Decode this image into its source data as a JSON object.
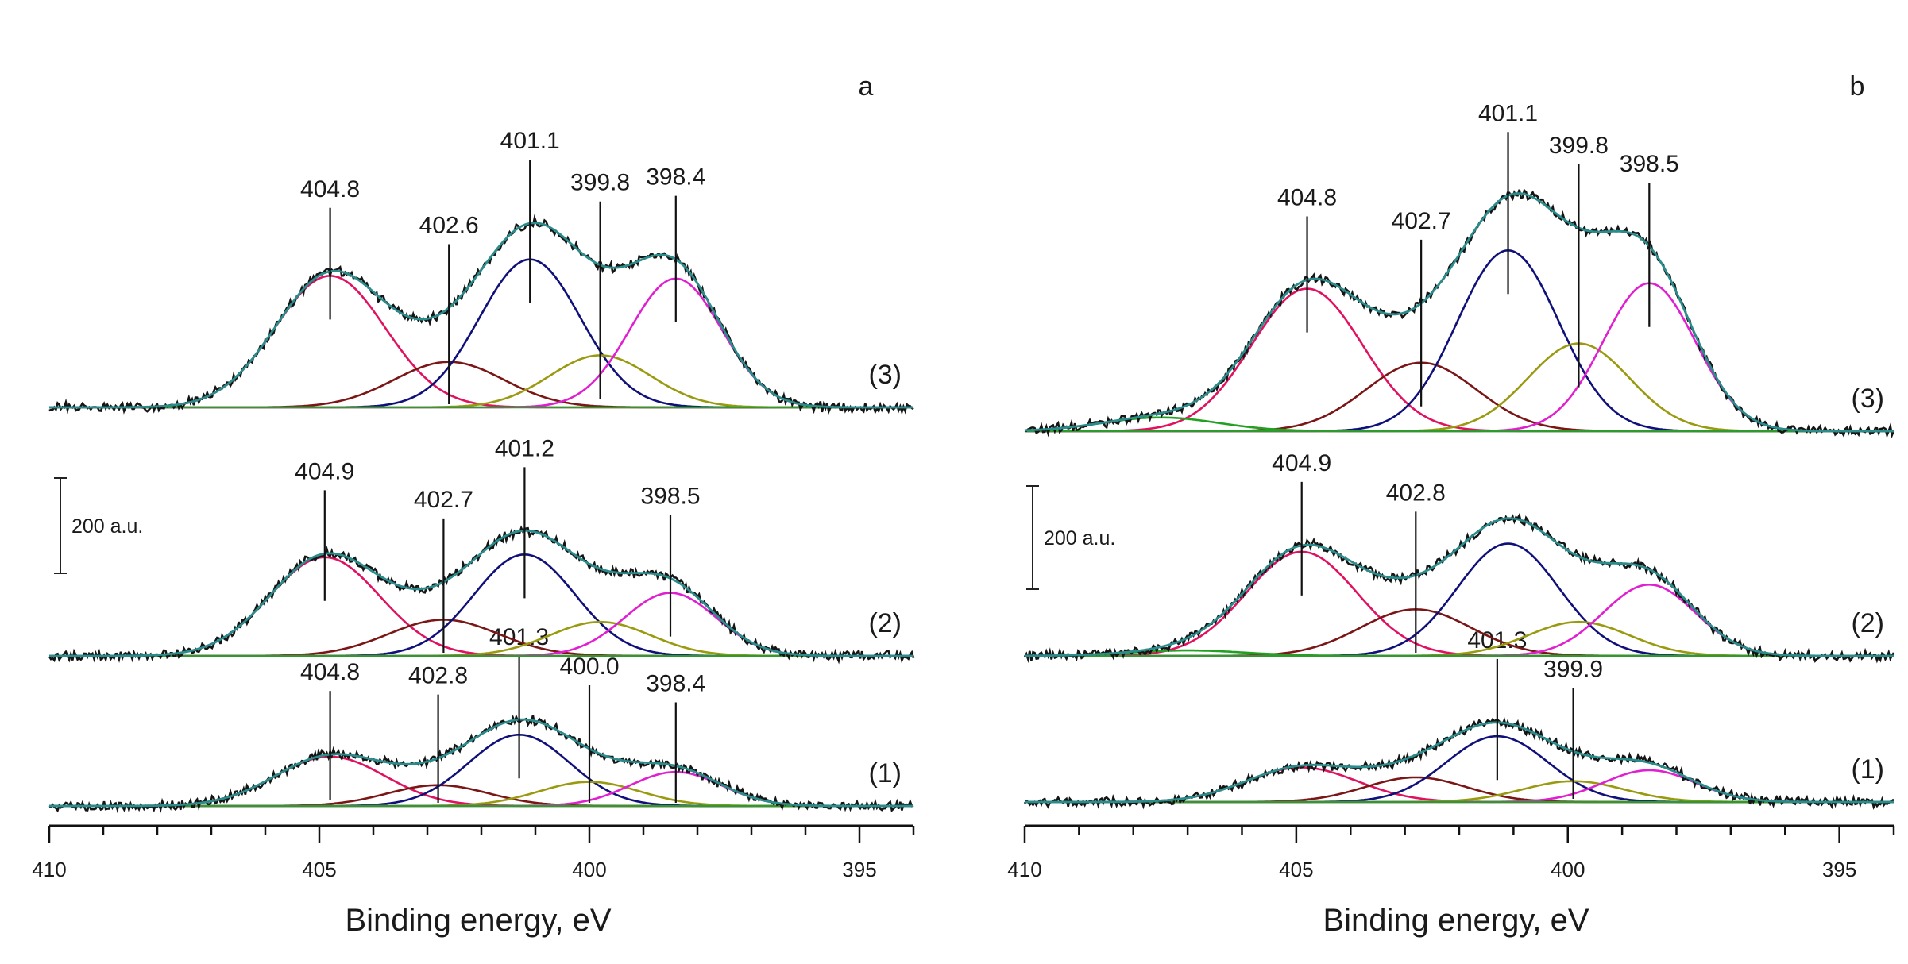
{
  "chart_data": [
    {
      "panel_label": "a",
      "type": "line",
      "xlabel": "Binding energy, eV",
      "ylabel": "",
      "xlim": [
        410,
        394
      ],
      "xticks": [
        "410",
        "405",
        "400",
        "395"
      ],
      "xtick_values": [
        410,
        405,
        400,
        395
      ],
      "scalebar_label": "200 a.u.",
      "component_colors": [
        "#e0115f",
        "#7b1616",
        "#10107a",
        "#9a9a10",
        "#e020d0"
      ],
      "spectra": [
        {
          "label": "(1)",
          "peaks": [
            {
              "be": 404.8,
              "height": 90,
              "fwhm": 2.4
            },
            {
              "be": 402.8,
              "height": 38,
              "fwhm": 2.2
            },
            {
              "be": 401.3,
              "height": 130,
              "fwhm": 2.2
            },
            {
              "be": 400.0,
              "height": 44,
              "fwhm": 2.2
            },
            {
              "be": 398.4,
              "height": 62,
              "fwhm": 2.0
            }
          ],
          "annotations": [
            {
              "text": "404.8",
              "be": 404.8
            },
            {
              "text": "402.8",
              "be": 402.8
            },
            {
              "text": "401.3",
              "be": 401.3
            },
            {
              "text": "400.0",
              "be": 400.0
            },
            {
              "text": "398.4",
              "be": 398.4
            }
          ]
        },
        {
          "label": "(2)",
          "peaks": [
            {
              "be": 404.9,
              "height": 180,
              "fwhm": 2.4
            },
            {
              "be": 402.7,
              "height": 66,
              "fwhm": 2.4
            },
            {
              "be": 401.2,
              "height": 185,
              "fwhm": 2.2
            },
            {
              "be": 399.8,
              "height": 62,
              "fwhm": 2.2
            },
            {
              "be": 398.5,
              "height": 115,
              "fwhm": 2.0
            }
          ],
          "annotations": [
            {
              "text": "404.9",
              "be": 404.9
            },
            {
              "text": "402.7",
              "be": 402.7
            },
            {
              "text": "401.2",
              "be": 401.2
            },
            {
              "text": "398.5",
              "be": 398.5
            }
          ]
        },
        {
          "label": "(3)",
          "peaks": [
            {
              "be": 404.8,
              "height": 240,
              "fwhm": 2.4
            },
            {
              "be": 402.6,
              "height": 83,
              "fwhm": 2.4
            },
            {
              "be": 401.1,
              "height": 270,
              "fwhm": 2.2
            },
            {
              "be": 399.8,
              "height": 95,
              "fwhm": 2.2
            },
            {
              "be": 398.4,
              "height": 235,
              "fwhm": 2.0
            }
          ],
          "annotations": [
            {
              "text": "404.8",
              "be": 404.8
            },
            {
              "text": "402.6",
              "be": 402.6
            },
            {
              "text": "401.1",
              "be": 401.1
            },
            {
              "text": "399.8",
              "be": 399.8
            },
            {
              "text": "398.4",
              "be": 398.4
            }
          ]
        }
      ]
    },
    {
      "panel_label": "b",
      "type": "line",
      "xlabel": "Binding energy, eV",
      "ylabel": "",
      "xlim": [
        410,
        394
      ],
      "xticks": [
        "410",
        "405",
        "400",
        "395"
      ],
      "xtick_values": [
        410,
        405,
        400,
        395
      ],
      "scalebar_label": "200 a.u.",
      "component_colors": [
        "#e0115f",
        "#7b1616",
        "#10107a",
        "#9a9a10",
        "#e020d0",
        "#22a022"
      ],
      "spectra": [
        {
          "label": "(1)",
          "peaks": [
            {
              "be": 404.9,
              "height": 63,
              "fwhm": 2.4
            },
            {
              "be": 402.8,
              "height": 45,
              "fwhm": 2.2
            },
            {
              "be": 401.3,
              "height": 120,
              "fwhm": 2.2
            },
            {
              "be": 399.9,
              "height": 38,
              "fwhm": 2.2
            },
            {
              "be": 398.5,
              "height": 58,
              "fwhm": 2.0
            }
          ],
          "annotations": [
            {
              "text": "401.3",
              "be": 401.3
            },
            {
              "text": "399.9",
              "be": 399.9
            }
          ]
        },
        {
          "label": "(2)",
          "peaks": [
            {
              "be": 404.9,
              "height": 190,
              "fwhm": 2.4
            },
            {
              "be": 402.8,
              "height": 85,
              "fwhm": 2.4
            },
            {
              "be": 401.1,
              "height": 205,
              "fwhm": 2.2
            },
            {
              "be": 399.8,
              "height": 62,
              "fwhm": 2.2
            },
            {
              "be": 398.5,
              "height": 130,
              "fwhm": 2.0
            },
            {
              "be": 407.0,
              "height": 10,
              "fwhm": 2.5
            }
          ],
          "annotations": [
            {
              "text": "404.9",
              "be": 404.9
            },
            {
              "text": "402.8",
              "be": 402.8
            }
          ]
        },
        {
          "label": "(3)",
          "peaks": [
            {
              "be": 404.8,
              "height": 260,
              "fwhm": 2.4
            },
            {
              "be": 402.7,
              "height": 125,
              "fwhm": 2.4
            },
            {
              "be": 401.1,
              "height": 330,
              "fwhm": 2.2
            },
            {
              "be": 399.8,
              "height": 160,
              "fwhm": 2.2
            },
            {
              "be": 398.5,
              "height": 270,
              "fwhm": 2.0
            },
            {
              "be": 407.5,
              "height": 25,
              "fwhm": 2.5
            }
          ],
          "annotations": [
            {
              "text": "404.8",
              "be": 404.8
            },
            {
              "text": "402.7",
              "be": 402.7
            },
            {
              "text": "401.1",
              "be": 401.1
            },
            {
              "text": "399.8",
              "be": 399.8
            },
            {
              "text": "398.5",
              "be": 398.5
            }
          ]
        }
      ]
    }
  ]
}
